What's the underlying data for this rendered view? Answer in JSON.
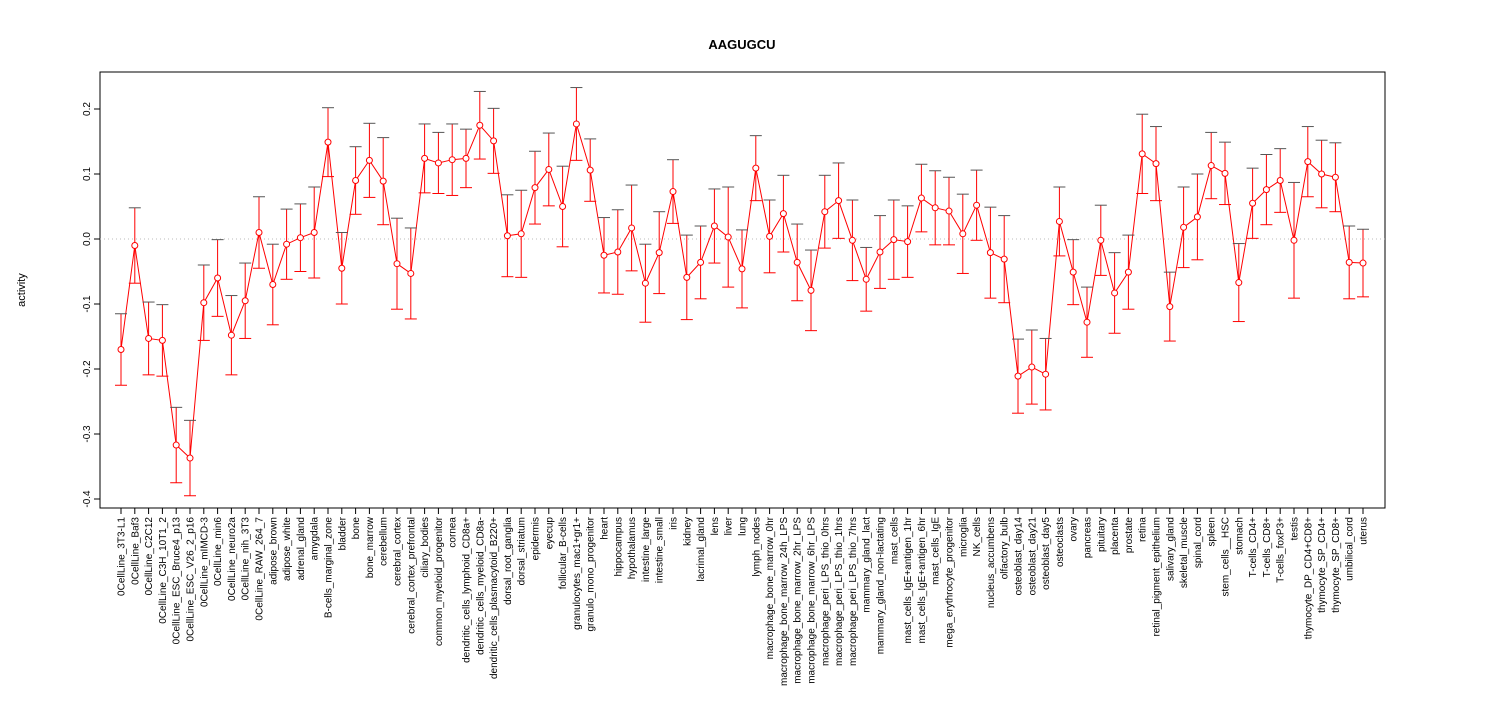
{
  "chart_data": {
    "type": "line",
    "title": "AAGUGCU",
    "xlabel": "",
    "ylabel": "activity",
    "ylim": [
      -0.42,
      0.25
    ],
    "yticks": [
      -0.4,
      -0.3,
      -0.2,
      -0.1,
      0.0,
      0.1,
      0.2
    ],
    "ytick_labels": [
      "-0.4",
      "-0.3",
      "-0.2",
      "-0.1",
      "0.0",
      "0.1",
      "0.2"
    ],
    "reference_line": 0.0,
    "grid": false,
    "colors": {
      "series": "#ff0000",
      "caps": "#555555",
      "refline": "#bbbbbb"
    },
    "categories": [
      "0CellLine_3T3-L1",
      "0CellLine_Baf3",
      "0CellLine_C2C12",
      "0CellLine_C3H_10T1_2",
      "0CellLine_ESC_Bruce4_p13",
      "0CellLine_ESC_V26_2_p16",
      "0CellLine_mIMCD-3",
      "0CellLine_min6",
      "0CellLine_neuro2a",
      "0CellLine_nih_3T3",
      "0CellLine_RAW_264_7",
      "adipose_brown",
      "adipose_white",
      "adrenal_gland",
      "amygdala",
      "B-cells_marginal_zone",
      "bladder",
      "bone",
      "bone_marrow",
      "cerebellum",
      "cerebral_cortex",
      "cerebral_cortex_prefrontal",
      "ciliary_bodies",
      "common_myeloid_progenitor",
      "cornea",
      "dendritic_cells_lymphoid_CD8a+",
      "dendritic_cells_myeloid_CD8a-",
      "dendritic_cells_plasmacytoid_B220+",
      "dorsal_root_ganglia",
      "dorsal_striatum",
      "epidermis",
      "eyecup",
      "follicular_B-cells",
      "granulocytes_mac1+gr1+",
      "granulo_mono_progenitor",
      "heart",
      "hippocampus",
      "hypothalamus",
      "intestine_large",
      "intestine_small",
      "iris",
      "kidney",
      "lacrimal_gland",
      "lens",
      "liver",
      "lung",
      "lymph_nodes",
      "macrophage_bone_marrow_0hr",
      "macrophage_bone_marrow_24h_LPS",
      "macrophage_bone_marrow_2hr_LPS",
      "macrophage_bone_marrow_6hr_LPS",
      "macrophage_peri_LPS_thio_0hrs",
      "macrophage_peri_LPS_thio_1hrs",
      "macrophage_peri_LPS_thio_7hrs",
      "mammary_gland_lact",
      "mammary_gland_non-lactating",
      "mast_cells",
      "mast_cells_IgE+antigen_1hr",
      "mast_cells_IgE+antigen_6hr",
      "mast_cells_IgE",
      "mega_erythrocyte_progenitor",
      "microglia",
      "NK_cells",
      "nucleus_accumbens",
      "olfactory_bulb",
      "osteoblast_day14",
      "osteoblast_day21",
      "osteoblast_day5",
      "osteoclasts",
      "ovary",
      "pancreas",
      "pituitary",
      "placenta",
      "prostate",
      "retina",
      "retinal_pigment_epithelium",
      "salivary_gland",
      "skeletal_muscle",
      "spinal_cord",
      "spleen",
      "stem_cells__HSC",
      "stomach",
      "T-cells_CD4+",
      "T-cells_CD8+",
      "T-cells_foxP3+",
      "testis",
      "thymocyte_DP_CD4+CD8+",
      "thymocyte_SP_CD4+",
      "thymocyte_SP_CD8+",
      "umbilical_cord",
      "uterus"
    ],
    "values": [
      -0.17,
      -0.01,
      -0.153,
      -0.156,
      -0.317,
      -0.337,
      -0.098,
      -0.06,
      -0.148,
      -0.095,
      0.01,
      -0.07,
      -0.008,
      0.002,
      0.01,
      0.149,
      -0.045,
      0.09,
      0.121,
      0.089,
      -0.038,
      -0.053,
      0.124,
      0.117,
      0.122,
      0.124,
      0.175,
      0.151,
      0.005,
      0.008,
      0.079,
      0.107,
      0.05,
      0.177,
      0.106,
      -0.025,
      -0.02,
      0.017,
      -0.068,
      -0.021,
      0.073,
      -0.059,
      -0.036,
      0.02,
      0.003,
      -0.046,
      0.109,
      0.004,
      0.039,
      -0.036,
      -0.079,
      0.042,
      0.059,
      -0.002,
      -0.062,
      -0.02,
      -0.001,
      -0.004,
      0.063,
      0.048,
      0.043,
      0.008,
      0.052,
      -0.021,
      -0.031,
      -0.211,
      -0.197,
      -0.208,
      0.027,
      -0.051,
      -0.128,
      -0.002,
      -0.083,
      -0.051,
      0.131,
      0.116,
      -0.104,
      0.018,
      0.034,
      0.113,
      0.101,
      -0.067,
      0.055,
      0.076,
      0.09,
      -0.002,
      0.119,
      0.1,
      0.095,
      -0.036,
      -0.037
    ],
    "errors": [
      0.055,
      0.058,
      0.056,
      0.055,
      0.058,
      0.058,
      0.058,
      0.059,
      0.061,
      0.058,
      0.055,
      0.062,
      0.054,
      0.052,
      0.07,
      0.053,
      0.055,
      0.052,
      0.057,
      0.067,
      0.07,
      0.07,
      0.053,
      0.047,
      0.055,
      0.045,
      0.052,
      0.05,
      0.063,
      0.067,
      0.056,
      0.056,
      0.062,
      0.056,
      0.048,
      0.058,
      0.065,
      0.066,
      0.06,
      0.063,
      0.049,
      0.065,
      0.056,
      0.057,
      0.077,
      0.06,
      0.05,
      0.056,
      0.059,
      0.059,
      0.062,
      0.056,
      0.058,
      0.062,
      0.049,
      0.056,
      0.061,
      0.055,
      0.052,
      0.057,
      0.052,
      0.061,
      0.054,
      0.07,
      0.067,
      0.057,
      0.057,
      0.055,
      0.053,
      0.05,
      0.054,
      0.054,
      0.062,
      0.057,
      0.061,
      0.057,
      0.053,
      0.062,
      0.066,
      0.051,
      0.048,
      0.06,
      0.054,
      0.054,
      0.049,
      0.089,
      0.054,
      0.052,
      0.053,
      0.056,
      0.052
    ]
  }
}
